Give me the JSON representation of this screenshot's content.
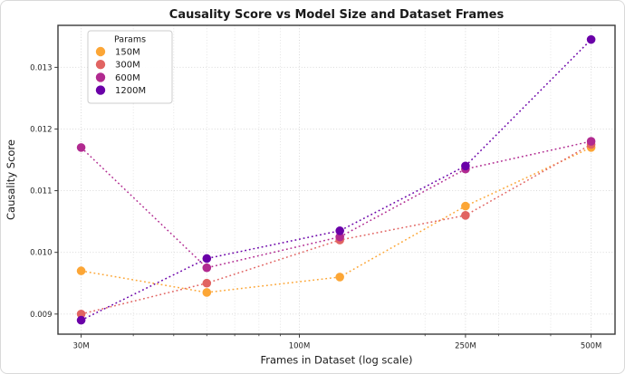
{
  "frame": {
    "background": "#ffffff",
    "border_color": "#d9d9d9"
  },
  "chart_data": {
    "type": "scatter",
    "title": "Causality Score vs Model Size and Dataset Frames",
    "xlabel": "Frames in Dataset (log scale)",
    "ylabel": "Causality Score",
    "x_scale": "log",
    "x_units": "millions of frames",
    "x": [
      30,
      60,
      125,
      250,
      500
    ],
    "xlim": [
      26.4,
      570.5
    ],
    "ylim": [
      0.008674,
      0.01368
    ],
    "x_major_ticks": [
      30,
      100,
      250,
      500
    ],
    "x_major_tick_labels": [
      "30M",
      "100M",
      "250M",
      "500M"
    ],
    "x_minor_ticks": [
      40,
      50,
      60,
      70,
      80,
      90,
      200,
      300,
      400
    ],
    "y_ticks": [
      0.009,
      0.01,
      0.011,
      0.012,
      0.013
    ],
    "y_tick_labels": [
      "0.009",
      "0.010",
      "0.011",
      "0.012",
      "0.013"
    ],
    "grid": true,
    "grid_color": "#d4d4d4",
    "spine_color": "#3a3a3a",
    "line_style": "dotted",
    "marker": "circle",
    "legend": {
      "title": "Params",
      "position": "upper-left"
    },
    "series": [
      {
        "name": "150M",
        "color": "#FCA636",
        "values": [
          0.0097,
          0.00935,
          0.0096,
          0.01075,
          0.0117
        ]
      },
      {
        "name": "300M",
        "color": "#E16462",
        "values": [
          0.009,
          0.0095,
          0.0102,
          0.0106,
          0.01175
        ]
      },
      {
        "name": "600M",
        "color": "#B12A90",
        "values": [
          0.0117,
          0.00975,
          0.01025,
          0.01135,
          0.0118
        ]
      },
      {
        "name": "1200M",
        "color": "#6A00A8",
        "values": [
          0.0089,
          0.0099,
          0.01035,
          0.0114,
          0.01345
        ]
      }
    ]
  }
}
